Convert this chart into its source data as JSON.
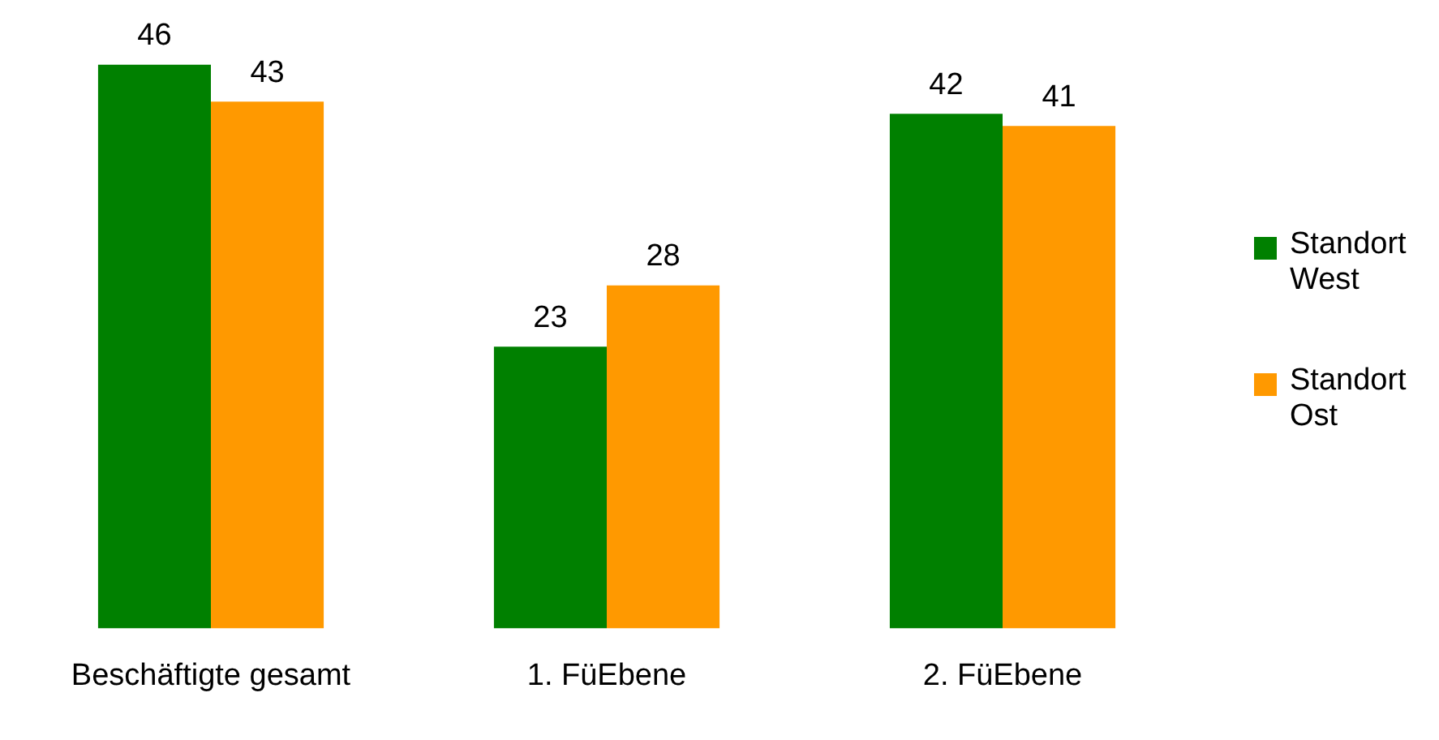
{
  "chart_data": {
    "type": "bar",
    "categories": [
      "Beschäftigte gesamt",
      "1. FüEbene",
      "2. FüEbene"
    ],
    "series": [
      {
        "name": "Standort West",
        "color": "#008000",
        "values": [
          46,
          23,
          42
        ]
      },
      {
        "name": "Standort Ost",
        "color": "#ff9900",
        "values": [
          43,
          28,
          41
        ]
      }
    ],
    "relative": false,
    "data_labels": true,
    "grid": false,
    "legend": "right"
  }
}
